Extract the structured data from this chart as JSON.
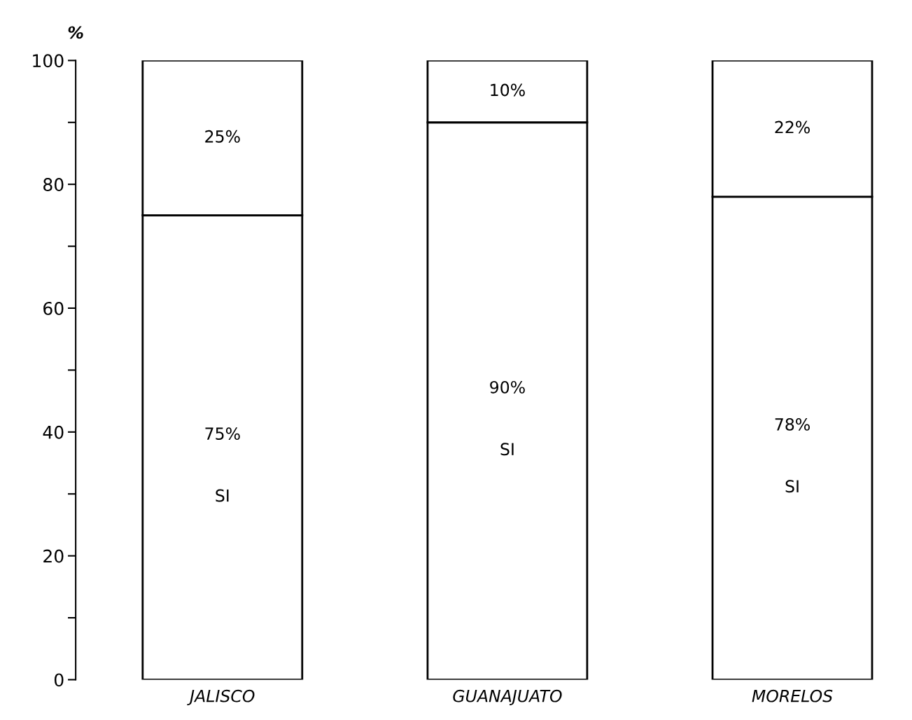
{
  "chart_data": {
    "type": "bar",
    "stacked": true,
    "ylabel": "%",
    "categories": [
      "JALISCO",
      "GUANAJUATO",
      "MORELOS"
    ],
    "series": [
      {
        "name": "SI",
        "color": "#ffffff",
        "values": [
          75,
          90,
          78
        ],
        "value_labels": [
          "75%",
          "90%",
          "78%"
        ]
      },
      {
        "color": "#ffffff",
        "values": [
          25,
          10,
          22
        ],
        "value_labels": [
          "25%",
          "10%",
          "22%"
        ]
      }
    ],
    "ylim": [
      0,
      100
    ],
    "yticks": [
      0,
      {
        "value": 10,
        "label": null
      },
      20,
      {
        "value": 30,
        "label": null
      },
      40,
      {
        "value": 50,
        "label": null
      },
      60,
      {
        "value": 70,
        "label": null
      },
      80,
      {
        "value": 90,
        "label": null
      },
      100
    ],
    "grid": false,
    "legend": false
  }
}
